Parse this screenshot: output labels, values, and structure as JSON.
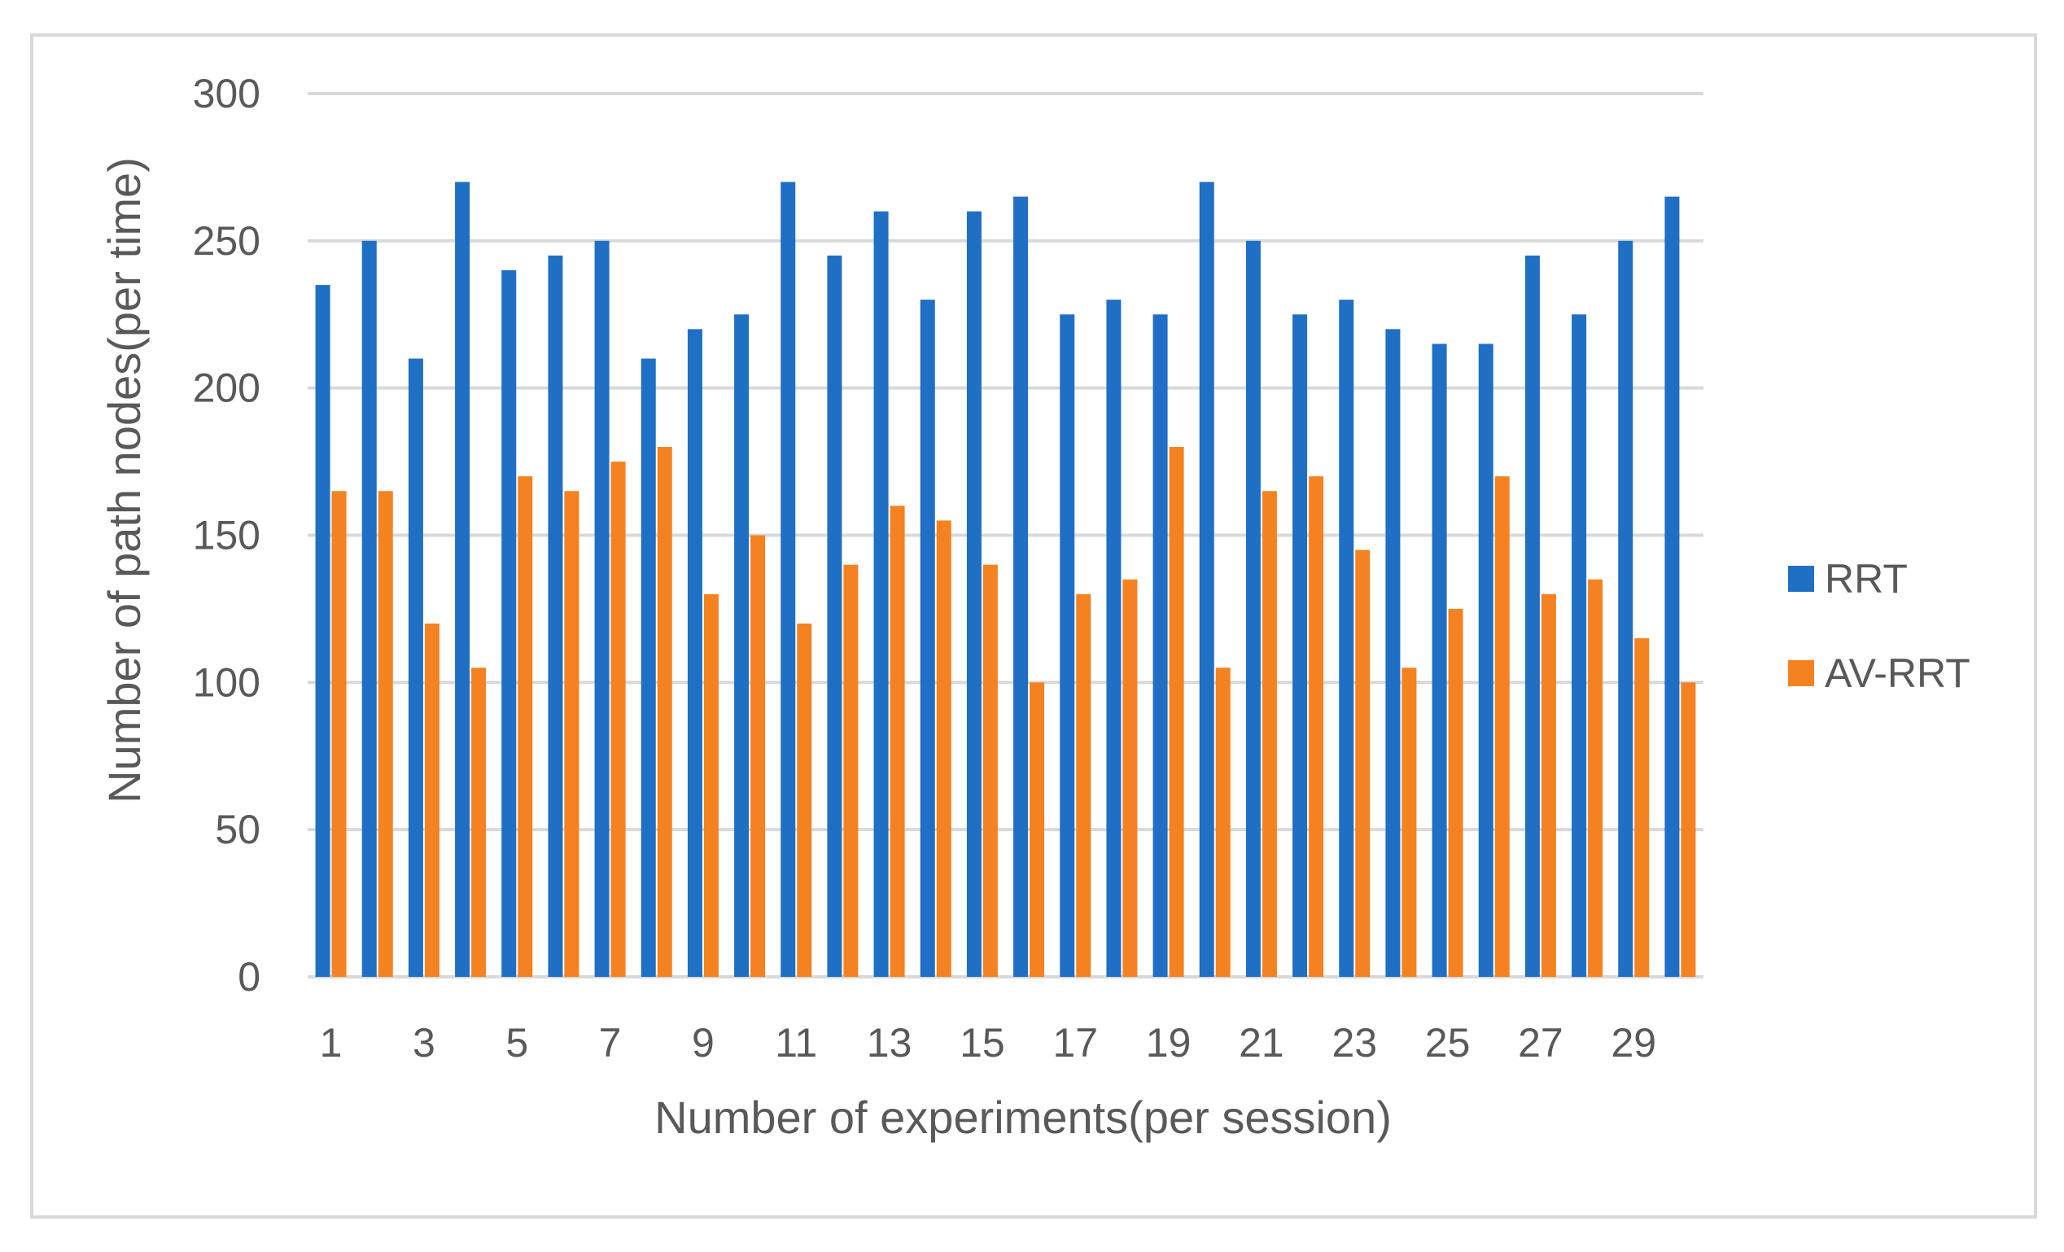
{
  "chart_data": {
    "type": "bar",
    "xlabel": "Number of experiments(per session)",
    "ylabel": "Number of path nodes(per time)",
    "ylim": [
      0,
      300
    ],
    "yticks": [
      0,
      50,
      100,
      150,
      200,
      250,
      300
    ],
    "categories": [
      "1",
      "2",
      "3",
      "4",
      "5",
      "6",
      "7",
      "8",
      "9",
      "10",
      "11",
      "12",
      "13",
      "14",
      "15",
      "16",
      "17",
      "18",
      "19",
      "20",
      "21",
      "22",
      "23",
      "24",
      "25",
      "26",
      "27",
      "28",
      "29",
      "30"
    ],
    "x_tick_labels": [
      "1",
      "3",
      "5",
      "7",
      "9",
      "11",
      "13",
      "15",
      "17",
      "19",
      "21",
      "23",
      "25",
      "27",
      "29"
    ],
    "grid": true,
    "legend_position": "right",
    "series": [
      {
        "name": "RRT",
        "color": "#1f6fc5",
        "values": [
          235,
          250,
          210,
          270,
          240,
          245,
          250,
          210,
          220,
          225,
          270,
          245,
          260,
          230,
          260,
          265,
          225,
          230,
          225,
          270,
          250,
          225,
          230,
          220,
          215,
          215,
          245,
          225,
          250,
          265
        ]
      },
      {
        "name": "AV-RRT",
        "color": "#f58220",
        "values": [
          165,
          165,
          120,
          105,
          170,
          165,
          175,
          180,
          130,
          150,
          120,
          140,
          160,
          155,
          140,
          100,
          130,
          135,
          180,
          105,
          165,
          170,
          145,
          105,
          125,
          170,
          130,
          135,
          115,
          100
        ]
      }
    ]
  }
}
